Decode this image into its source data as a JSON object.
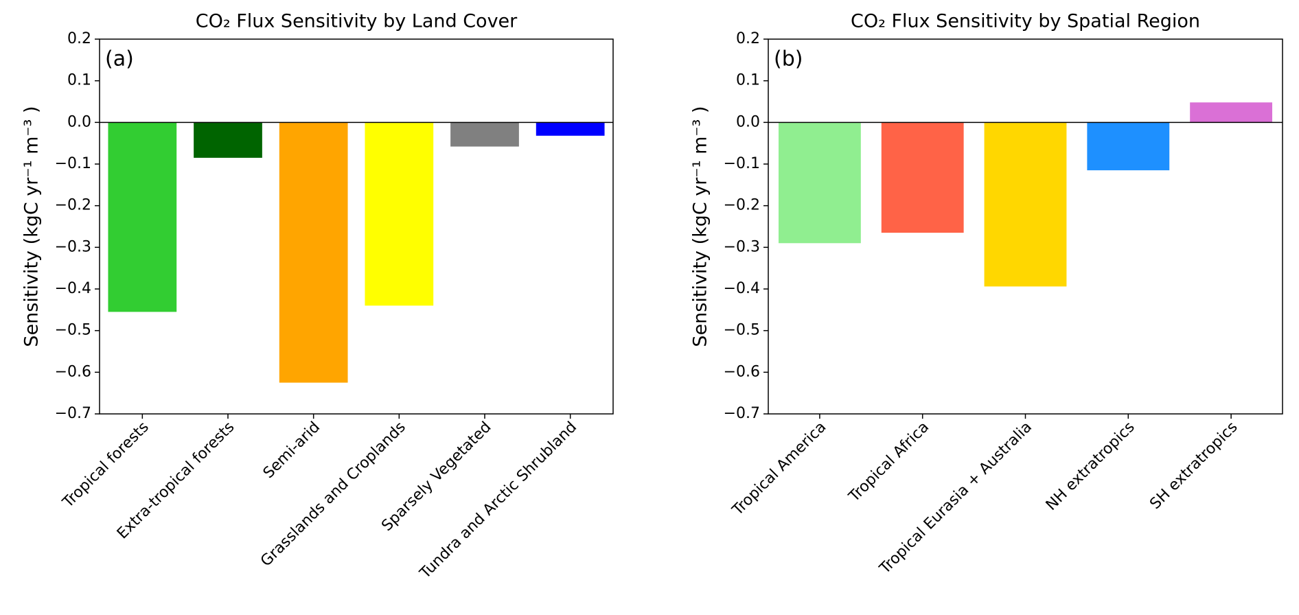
{
  "chart_data": [
    {
      "type": "bar",
      "title": "CO₂ Flux Sensitivity by Land Cover",
      "panel_label": "(a)",
      "y_label": "Sensitivity (kgC yr⁻¹ m⁻³ )",
      "categories": [
        "Tropical forests",
        "Extra-tropical forests",
        "Semi-arid",
        "Grasslands and Croplands",
        "Sparsely Vegetated",
        "Tundra and Arctic Shrubland"
      ],
      "values": [
        -0.455,
        -0.085,
        -0.625,
        -0.44,
        -0.058,
        -0.032
      ],
      "colors": [
        "#32cd32",
        "#006400",
        "#ffa500",
        "#ffff00",
        "#808080",
        "#0000ff"
      ],
      "ylim": [
        -0.7,
        0.2
      ],
      "yticks": [
        {
          "value": -0.7,
          "label": "−0.7"
        },
        {
          "value": -0.6,
          "label": "−0.6"
        },
        {
          "value": -0.5,
          "label": "−0.5"
        },
        {
          "value": -0.4,
          "label": "−0.4"
        },
        {
          "value": -0.3,
          "label": "−0.3"
        },
        {
          "value": -0.2,
          "label": "−0.2"
        },
        {
          "value": -0.1,
          "label": "−0.1"
        },
        {
          "value": 0,
          "label": "0.0"
        },
        0.1,
        0.2
      ]
    },
    {
      "type": "bar",
      "title": "CO₂ Flux Sensitivity by Spatial Region",
      "panel_label": "(b)",
      "y_label": "Sensitivity (kgC yr⁻¹ m⁻³ )",
      "categories": [
        "Tropical America",
        "Tropical Africa",
        "Tropical Eurasia + Australia",
        "NH extratropics",
        "SH extratropics"
      ],
      "values": [
        -0.29,
        -0.265,
        -0.394,
        -0.115,
        0.048
      ],
      "colors": [
        "#90ee90",
        "#ff6347",
        "#ffd700",
        "#1e90ff",
        "#da70d6"
      ],
      "ylim": [
        -0.7,
        0.2
      ],
      "yticks": [
        {
          "value": -0.7,
          "label": "−0.7"
        },
        {
          "value": -0.6,
          "label": "−0.6"
        },
        {
          "value": -0.5,
          "label": "−0.5"
        },
        {
          "value": -0.4,
          "label": "−0.4"
        },
        {
          "value": -0.3,
          "label": "−0.3"
        },
        {
          "value": -0.2,
          "label": "−0.2"
        },
        {
          "value": -0.1,
          "label": "−0.1"
        },
        {
          "value": 0,
          "label": "0.0"
        },
        0.1,
        0.2
      ]
    }
  ]
}
